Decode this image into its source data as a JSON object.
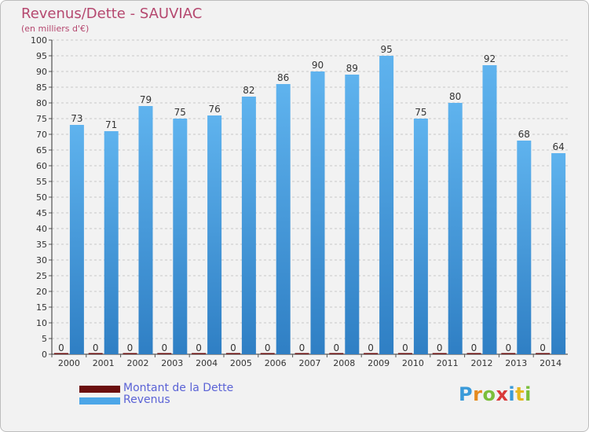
{
  "title": "Revenus/Dette - SAUVIAC",
  "subtitle": "(en milliers d'€)",
  "logo": {
    "letters": [
      "P",
      "r",
      "o",
      "x",
      "i",
      "t",
      "i"
    ],
    "colors": [
      "#3a9ad9",
      "#e58a1f",
      "#7bbf3b",
      "#d93a3a",
      "#3a9ad9",
      "#e5b81f",
      "#7bbf3b"
    ]
  },
  "legend": [
    {
      "label": "Montant de la Dette",
      "color": "#6b0f0f"
    },
    {
      "label": "Revenus",
      "color": "#4ca6e8"
    }
  ],
  "chart_data": {
    "type": "bar",
    "categories": [
      "2000",
      "2001",
      "2002",
      "2003",
      "2004",
      "2005",
      "2006",
      "2007",
      "2008",
      "2009",
      "2010",
      "2011",
      "2012",
      "2013",
      "2014"
    ],
    "series": [
      {
        "name": "Montant de la Dette",
        "values": [
          0,
          0,
          0,
          0,
          0,
          0,
          0,
          0,
          0,
          0,
          0,
          0,
          0,
          0,
          0
        ],
        "color": "#6b0f0f"
      },
      {
        "name": "Revenus",
        "values": [
          73,
          71,
          79,
          75,
          76,
          82,
          86,
          90,
          89,
          95,
          75,
          80,
          92,
          68,
          64
        ],
        "color": "#4ca6e8"
      }
    ],
    "ylim": [
      0,
      100
    ],
    "ytick_step": 5,
    "grid": true,
    "data_labels": true,
    "legend_position": "bottom-left"
  }
}
